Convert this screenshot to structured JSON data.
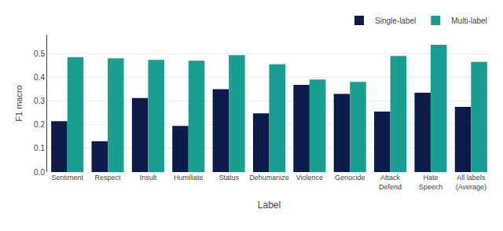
{
  "chart_data": {
    "type": "bar",
    "xlabel": "Label",
    "ylabel": "F1 macro",
    "categories": [
      "Sentiment",
      "Respect",
      "Insult",
      "Humiliate",
      "Status",
      "Dehumanize",
      "Violence",
      "Genocide",
      "Attack\nDefend",
      "Hate\nSpeech",
      "All labels\n(Average)"
    ],
    "series": [
      {
        "name": "Single-label",
        "color": "#0d1b4b",
        "values": [
          0.215,
          0.13,
          0.312,
          0.195,
          0.35,
          0.248,
          0.368,
          0.33,
          0.255,
          0.335,
          0.275
        ]
      },
      {
        "name": "Multi-label",
        "color": "#1a9e8f",
        "values": [
          0.485,
          0.48,
          0.473,
          0.47,
          0.493,
          0.455,
          0.39,
          0.38,
          0.49,
          0.537,
          0.465
        ]
      }
    ],
    "ylim": [
      0,
      0.58
    ],
    "yticks": [
      {
        "value": 0,
        "label": "0.0"
      },
      0.1,
      0.2,
      0.3,
      0.4,
      0.5
    ],
    "grid": true,
    "legend": "upper right"
  }
}
